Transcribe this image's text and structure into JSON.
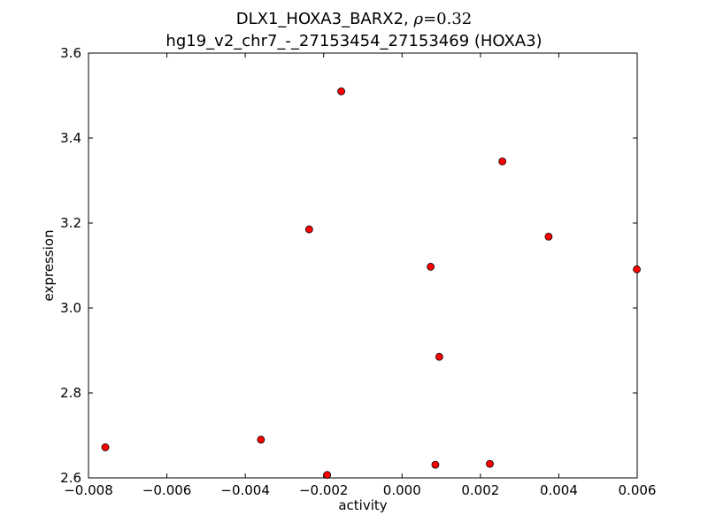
{
  "chart_data": {
    "type": "scatter",
    "title": {
      "line1_prefix": "DLX1_HOXA3_BARX2, ",
      "rho_symbol": "ρ",
      "rho_value": "=0.32",
      "line2": "hg19_v2_chr7_-_27153454_27153469 (HOXA3)"
    },
    "xlabel": "activity",
    "ylabel": "expression",
    "xlim": [
      -0.008,
      0.006
    ],
    "ylim": [
      2.6,
      3.6
    ],
    "x_ticks": [
      -0.008,
      -0.006,
      -0.004,
      -0.002,
      0.0,
      0.002,
      0.004,
      0.006
    ],
    "x_tick_labels": [
      "−0.008",
      "−0.006",
      "−0.004",
      "−0.002",
      "0.000",
      "0.002",
      "0.004",
      "0.006"
    ],
    "y_ticks": [
      2.6,
      2.8,
      3.0,
      3.2,
      3.4,
      3.6
    ],
    "y_tick_labels": [
      "2.6",
      "2.8",
      "3.0",
      "3.2",
      "3.4",
      "3.6"
    ],
    "grid": false,
    "marker_color": "#ff0000",
    "marker_edge_color": "#000000",
    "points": [
      {
        "x": -0.00757,
        "y": 2.672
      },
      {
        "x": -0.0036,
        "y": 2.69
      },
      {
        "x": -0.00237,
        "y": 3.185
      },
      {
        "x": -0.00191,
        "y": 2.607
      },
      {
        "x": -0.00155,
        "y": 3.51
      },
      {
        "x": 0.00073,
        "y": 3.097
      },
      {
        "x": 0.00085,
        "y": 2.631
      },
      {
        "x": 0.00095,
        "y": 2.885
      },
      {
        "x": 0.00224,
        "y": 2.633
      },
      {
        "x": 0.00256,
        "y": 3.345
      },
      {
        "x": 0.00374,
        "y": 3.168
      },
      {
        "x": 0.00599,
        "y": 3.091
      }
    ]
  }
}
